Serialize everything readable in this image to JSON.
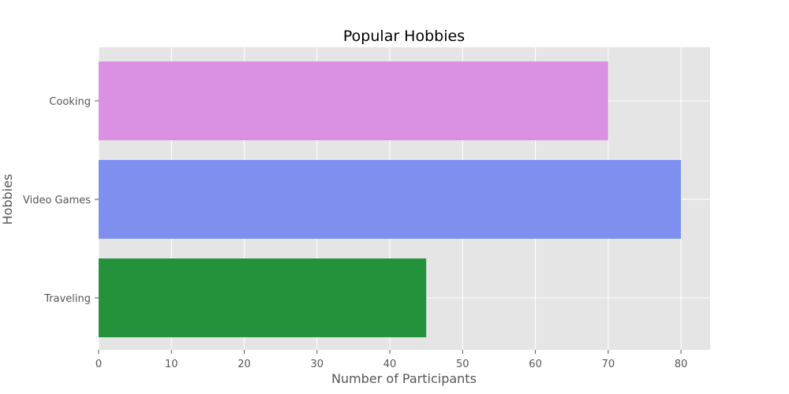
{
  "chart_data": {
    "type": "bar",
    "orientation": "horizontal",
    "title": "Popular Hobbies",
    "xlabel": "Number of Participants",
    "ylabel": "Hobbies",
    "categories": [
      "Traveling",
      "Video Games",
      "Cooking"
    ],
    "values": [
      45,
      80,
      70
    ],
    "bar_colors": [
      "#23923a",
      "#7e8fef",
      "#da91e3"
    ],
    "xlim": [
      0,
      84
    ],
    "xticks": [
      0,
      10,
      20,
      30,
      40,
      50,
      60,
      70,
      80
    ],
    "grid": true,
    "legend": "none",
    "style": {
      "plot_background": "#e5e5e5",
      "grid_color": "#ffffff",
      "tick_color": "#555555"
    }
  }
}
